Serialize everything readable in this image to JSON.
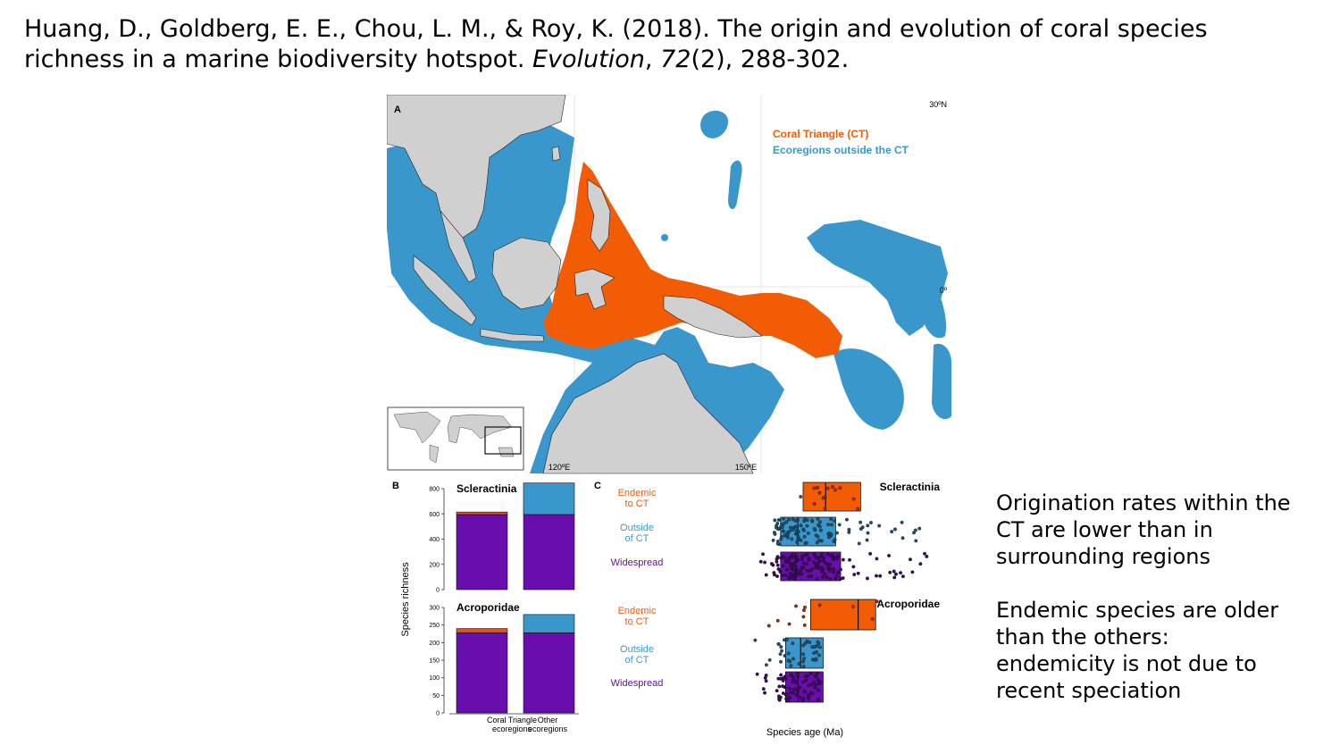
{
  "citation": {
    "authors": "Huang, D., Goldberg, E. E., Chou, L. M., & Roy, K. (2018). The origin and evolution of coral species richness in a marine biodiversity hotspot.",
    "journal": "Evolution",
    "sep1": ",",
    "volume": "72",
    "issue_pages": "(2), 288-302."
  },
  "panel_a": {
    "label": "A",
    "legend_ct": "Coral Triangle (CT)",
    "legend_outside": "Ecoregions outside the CT",
    "lat_30": "30ºN",
    "lat_0": "0º",
    "lon_120": "120ºE",
    "lon_150": "150ºE",
    "colors": {
      "land": "#d0d0d0",
      "ct": "#f25c05",
      "outside": "#3a97cc",
      "ocean": "#ffffff"
    }
  },
  "panel_b": {
    "label": "B",
    "ylabel": "Species richness",
    "categories": [
      "Coral Triangle ecoregions",
      "Other ecoregions"
    ],
    "cat_line1": [
      "Coral Triangle",
      "Other"
    ],
    "cat_line2": [
      "ecoregions",
      "ecoregions"
    ],
    "colors": {
      "widespread": "#6a0dad",
      "endemic": "#e2501d",
      "outside": "#3a97cc"
    }
  },
  "panel_c": {
    "label": "C",
    "xlabel": "Species age (Ma)",
    "groups": [
      {
        "line1": "Endemic",
        "line2": "to CT",
        "color": "#f25c05"
      },
      {
        "line1": "Outside",
        "line2": "of CT",
        "color": "#3a97cc"
      },
      {
        "line1": "Widespread",
        "line2": "",
        "color": "#6a0dad"
      }
    ]
  },
  "chart_data": [
    {
      "type": "bar",
      "title": "Scleractinia",
      "ylabel": "Species richness",
      "categories": [
        "Coral Triangle ecoregions",
        "Other ecoregions"
      ],
      "ylim": [
        0,
        800
      ],
      "yticks": [
        0,
        200,
        400,
        600,
        800
      ],
      "series": [
        {
          "name": "Widespread",
          "values": [
            595,
            595
          ]
        },
        {
          "name": "Endemic to CT",
          "values": [
            20,
            0
          ]
        },
        {
          "name": "Outside of CT",
          "values": [
            0,
            250
          ]
        }
      ]
    },
    {
      "type": "bar",
      "title": "Acroporidae",
      "ylabel": "Species richness",
      "categories": [
        "Coral Triangle ecoregions",
        "Other ecoregions"
      ],
      "ylim": [
        0,
        300
      ],
      "yticks": [
        0,
        50,
        100,
        150,
        200,
        250,
        300
      ],
      "series": [
        {
          "name": "Widespread",
          "values": [
            228,
            228
          ]
        },
        {
          "name": "Endemic to CT",
          "values": [
            12,
            0
          ]
        },
        {
          "name": "Outside of CT",
          "values": [
            0,
            52
          ]
        }
      ]
    },
    {
      "type": "scatter",
      "title": "Scleractinia",
      "xlabel": "Species age (Ma)",
      "groups": [
        "Endemic to CT",
        "Outside of CT",
        "Widespread"
      ],
      "box_summary": [
        {
          "group": "Endemic to CT",
          "q1": 0.45,
          "median": 0.54,
          "q3": 0.68
        },
        {
          "group": "Outside of CT",
          "q1": 0.36,
          "median": 0.43,
          "q3": 0.58
        },
        {
          "group": "Widespread",
          "q1": 0.36,
          "median": 0.42,
          "q3": 0.6
        }
      ]
    },
    {
      "type": "scatter",
      "title": "Acroporidae",
      "xlabel": "Species age (Ma)",
      "groups": [
        "Endemic to CT",
        "Outside of CT",
        "Widespread"
      ],
      "box_summary": [
        {
          "group": "Endemic to CT",
          "q1": 0.48,
          "median": 0.67,
          "q3": 0.74
        },
        {
          "group": "Outside of CT",
          "q1": 0.38,
          "median": 0.44,
          "q3": 0.53
        },
        {
          "group": "Widespread",
          "q1": 0.38,
          "median": 0.43,
          "q3": 0.53
        }
      ]
    }
  ],
  "notes": {
    "point1": "Origination rates within the CT are lower than in surrounding regions",
    "point2": "Endemic species are older than the others: endemicity is not due to recent speciation"
  }
}
